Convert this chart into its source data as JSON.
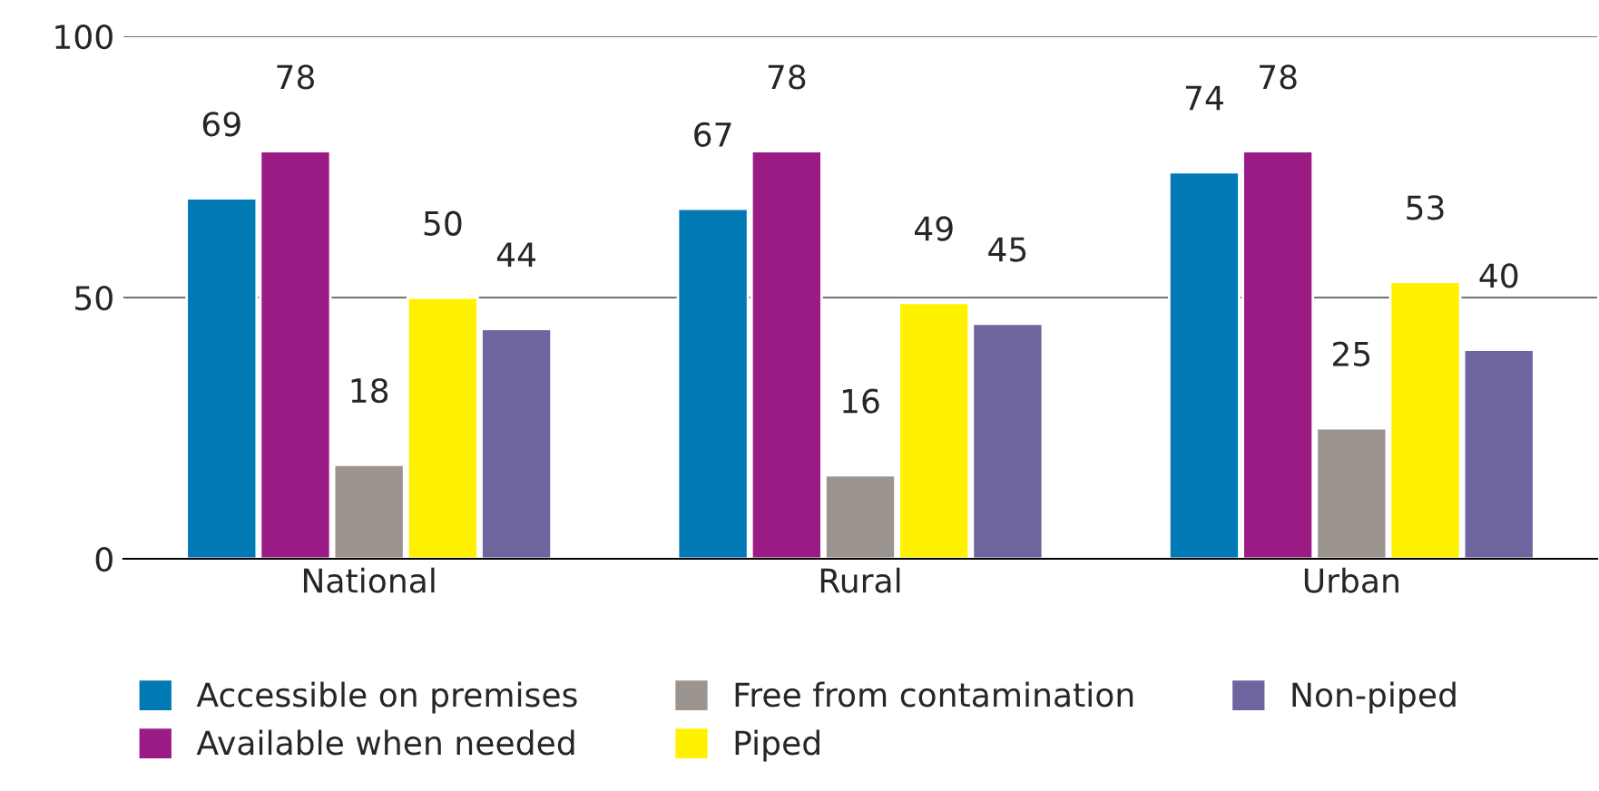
{
  "chart_data": {
    "type": "bar",
    "categories": [
      "National",
      "Rural",
      "Urban"
    ],
    "series": [
      {
        "name": "Accessible on premises",
        "color": "#0079b4",
        "values": [
          69,
          67,
          74
        ]
      },
      {
        "name": "Available when needed",
        "color": "#9b1b85",
        "values": [
          78,
          78,
          78
        ]
      },
      {
        "name": "Free from contamination",
        "color": "#9b948f",
        "values": [
          18,
          16,
          25
        ]
      },
      {
        "name": "Piped",
        "color": "#fff200",
        "values": [
          50,
          49,
          53
        ]
      },
      {
        "name": "Non-piped",
        "color": "#6f659e",
        "values": [
          44,
          45,
          40
        ]
      }
    ],
    "ylim": [
      0,
      100
    ],
    "yticks": [
      0,
      50,
      100
    ],
    "grid": "y",
    "legend": "bottom",
    "data_labels": true
  }
}
